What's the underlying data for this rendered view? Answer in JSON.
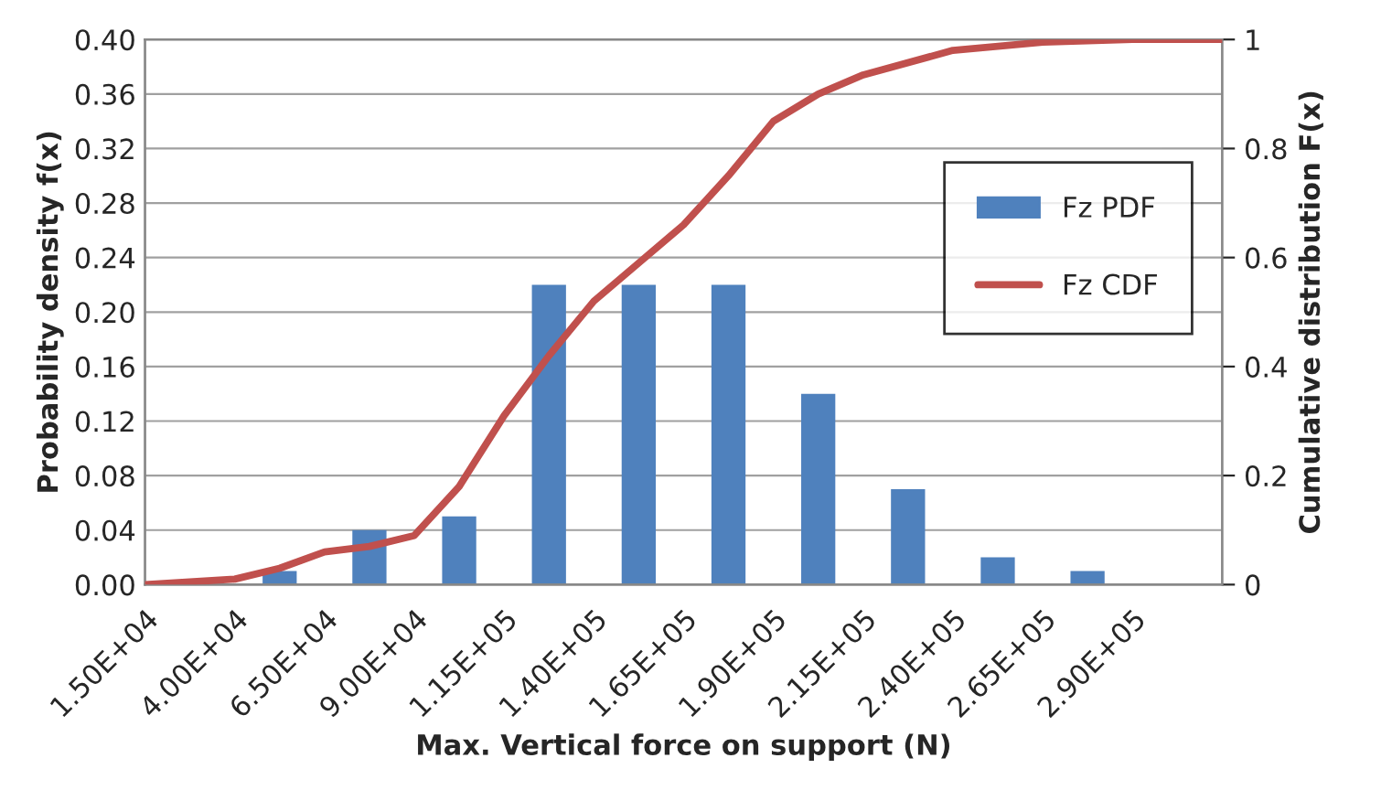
{
  "chart_data": {
    "type": "histogram",
    "xlabel": "Max. Vertical force on support (N)",
    "ylabel": "Probability density f(x)",
    "y2label": "Cumulative distribution F(x)",
    "bins": [
      15000,
      40000,
      65000,
      90000,
      115000,
      140000,
      165000,
      190000,
      215000,
      240000,
      265000,
      290000,
      315000
    ],
    "series": [
      {
        "name": "Fz PDF",
        "color": "#4f81bd",
        "values": [
          0,
          0.01,
          0.04,
          0.05,
          0.22,
          0.22,
          0.22,
          0.14,
          0.07,
          0.02,
          0.01,
          0
        ]
      },
      {
        "name": "Fz CDF",
        "type": "line",
        "axis": "y2",
        "color": "#c0504d",
        "x": [
          15000,
          40000,
          52500,
          65000,
          77500,
          90000,
          102500,
          115000,
          127500,
          140000,
          152500,
          165000,
          177500,
          190000,
          202500,
          215000,
          240000,
          265000,
          290000,
          315000
        ],
        "values": [
          0,
          0.01,
          0.03,
          0.06,
          0.07,
          0.09,
          0.18,
          0.31,
          0.42,
          0.52,
          0.59,
          0.66,
          0.75,
          0.85,
          0.9,
          0.935,
          0.98,
          0.995,
          1,
          1
        ]
      }
    ],
    "xlim": [
      15000,
      315000
    ],
    "xticks": [
      {
        "value": 15000,
        "label": "1.50E+04"
      },
      {
        "value": 40000,
        "label": "4.00E+04"
      },
      {
        "value": 65000,
        "label": "6.50E+04"
      },
      {
        "value": 90000,
        "label": "9.00E+04"
      },
      {
        "value": 115000,
        "label": "1.15E+05"
      },
      {
        "value": 140000,
        "label": "1.40E+05"
      },
      {
        "value": 165000,
        "label": "1.65E+05"
      },
      {
        "value": 190000,
        "label": "1.90E+05"
      },
      {
        "value": 215000,
        "label": "2.15E+05"
      },
      {
        "value": 240000,
        "label": "2.40E+05"
      },
      {
        "value": 265000,
        "label": "2.65E+05"
      },
      {
        "value": 290000,
        "label": "2.90E+05"
      },
      {
        "value": 315000,
        "label": null
      }
    ],
    "ylim": [
      0,
      0.4
    ],
    "yticks": [
      {
        "value": 0,
        "label": "0.00"
      },
      {
        "value": 0.04,
        "label": "0.04"
      },
      {
        "value": 0.08,
        "label": "0.08"
      },
      {
        "value": 0.12,
        "label": "0.12"
      },
      {
        "value": 0.16,
        "label": "0.16"
      },
      {
        "value": 0.2,
        "label": "0.20"
      },
      {
        "value": 0.24,
        "label": "0.24"
      },
      {
        "value": 0.28,
        "label": "0.28"
      },
      {
        "value": 0.32,
        "label": "0.32"
      },
      {
        "value": 0.36,
        "label": "0.36"
      },
      {
        "value": 0.4,
        "label": "0.40"
      }
    ],
    "y2lim": [
      0,
      1
    ],
    "y2ticks": [
      0,
      0.2,
      0.4,
      0.6,
      0.8,
      1
    ],
    "grid": "y",
    "legend": "top right"
  }
}
